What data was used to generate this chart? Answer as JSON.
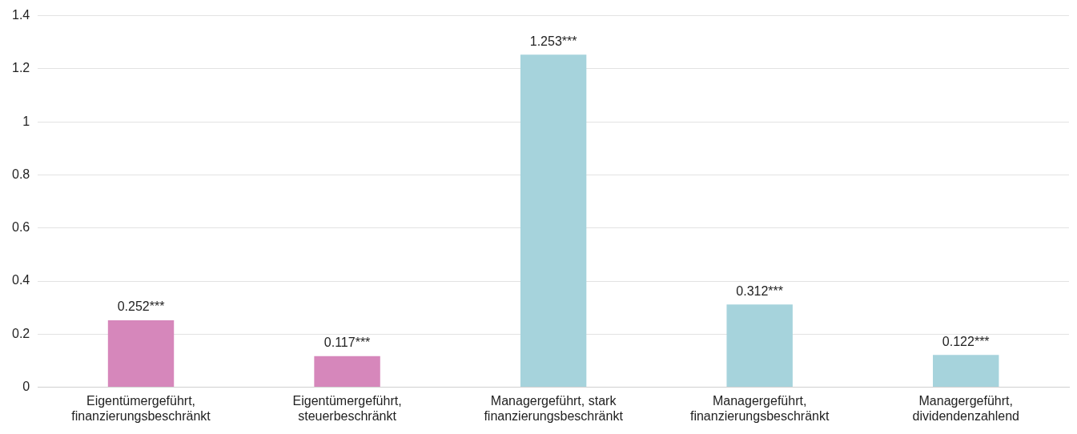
{
  "chart_data": {
    "type": "bar",
    "categories": [
      "Eigentümergeführt, finanzierungsbeschränkt",
      "Eigentümergeführt, steuerbeschränkt",
      "Managergeführt, stark finanzierungsbeschränkt",
      "Managergeführt, finanzierungsbeschränkt",
      "Managergeführt, dividendenzahlend"
    ],
    "values": [
      0.252,
      0.117,
      1.253,
      0.312,
      0.122
    ],
    "colors": [
      "#d687bb",
      "#d687bb",
      "#a6d3dc",
      "#a6d3dc",
      "#a6d3dc"
    ],
    "value_labels": [
      "0.252***",
      "0.117***",
      "1.253***",
      "0.312***",
      "0.122***"
    ],
    "ylim": [
      0,
      1.4
    ],
    "yticks": [
      0,
      0.2,
      0.4,
      0.6,
      0.8,
      1,
      1.2,
      1.4
    ],
    "grid": "y",
    "legend": false
  }
}
